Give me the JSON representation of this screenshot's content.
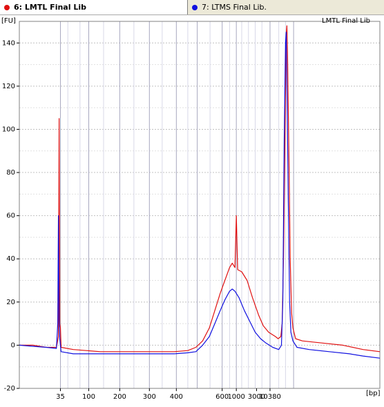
{
  "tabs": [
    {
      "label": "6: LMTL Final Lib",
      "color": "#e01010",
      "active": true
    },
    {
      "label": "7: LTMS Final Lib.",
      "color": "#1010e0",
      "active": false
    }
  ],
  "chart_data": {
    "type": "line",
    "title": "LMTL Final Lib",
    "ylabel": "[FU]",
    "xlabel": "[bp]",
    "ylim": [
      -20,
      150
    ],
    "y_ticks": [
      -20,
      0,
      20,
      40,
      60,
      80,
      100,
      120,
      140
    ],
    "x_ticks": [
      "35",
      "100",
      "200",
      "300",
      "400",
      "600",
      "1000",
      "3000",
      "10380"
    ],
    "grid": true,
    "series": [
      {
        "name": "6: LMTL Final Lib",
        "color": "#e01010",
        "points": [
          [
            0,
            0
          ],
          [
            20,
            0
          ],
          [
            40,
            -1
          ],
          [
            55,
            -1
          ],
          [
            58,
            4
          ],
          [
            59,
            105
          ],
          [
            60,
            10
          ],
          [
            61,
            8
          ],
          [
            62,
            -1
          ],
          [
            80,
            -2
          ],
          [
            120,
            -3
          ],
          [
            180,
            -3
          ],
          [
            230,
            -3
          ],
          [
            250,
            -2.5
          ],
          [
            262,
            -1
          ],
          [
            272,
            2
          ],
          [
            282,
            8
          ],
          [
            290,
            16
          ],
          [
            298,
            24
          ],
          [
            305,
            30
          ],
          [
            312,
            36
          ],
          [
            316,
            38
          ],
          [
            320,
            36
          ],
          [
            322,
            60
          ],
          [
            324,
            35
          ],
          [
            330,
            34
          ],
          [
            338,
            30
          ],
          [
            346,
            22
          ],
          [
            355,
            14
          ],
          [
            362,
            9
          ],
          [
            370,
            6
          ],
          [
            380,
            4
          ],
          [
            384,
            3
          ],
          [
            388,
            4
          ],
          [
            390,
            10
          ],
          [
            392,
            40
          ],
          [
            394,
            90
          ],
          [
            396,
            144
          ],
          [
            397,
            148
          ],
          [
            398,
            135
          ],
          [
            400,
            90
          ],
          [
            402,
            40
          ],
          [
            404,
            15
          ],
          [
            406,
            8
          ],
          [
            410,
            3
          ],
          [
            420,
            2
          ],
          [
            450,
            1
          ],
          [
            480,
            0
          ],
          [
            510,
            -2
          ],
          [
            535,
            -3
          ]
        ]
      },
      {
        "name": "7: LTMS Final Lib.",
        "color": "#1010e0",
        "points": [
          [
            0,
            0
          ],
          [
            20,
            -0.5
          ],
          [
            40,
            -1
          ],
          [
            55,
            -1.5
          ],
          [
            57,
            10
          ],
          [
            58,
            60
          ],
          [
            59,
            12
          ],
          [
            60,
            3
          ],
          [
            62,
            -3
          ],
          [
            80,
            -4
          ],
          [
            120,
            -4
          ],
          [
            180,
            -4
          ],
          [
            230,
            -4
          ],
          [
            250,
            -3.5
          ],
          [
            262,
            -3
          ],
          [
            272,
            0
          ],
          [
            282,
            4
          ],
          [
            290,
            10
          ],
          [
            298,
            16
          ],
          [
            305,
            21
          ],
          [
            312,
            25
          ],
          [
            316,
            26
          ],
          [
            320,
            25
          ],
          [
            326,
            22
          ],
          [
            334,
            16
          ],
          [
            342,
            11
          ],
          [
            350,
            6
          ],
          [
            358,
            3
          ],
          [
            366,
            1
          ],
          [
            376,
            -1
          ],
          [
            385,
            -2
          ],
          [
            389,
            0
          ],
          [
            391,
            20
          ],
          [
            393,
            95
          ],
          [
            395,
            140
          ],
          [
            396,
            145
          ],
          [
            397,
            120
          ],
          [
            399,
            70
          ],
          [
            401,
            20
          ],
          [
            403,
            6
          ],
          [
            406,
            2
          ],
          [
            412,
            -1
          ],
          [
            430,
            -2
          ],
          [
            460,
            -3
          ],
          [
            490,
            -4
          ],
          [
            510,
            -5
          ],
          [
            535,
            -6
          ]
        ]
      }
    ]
  }
}
